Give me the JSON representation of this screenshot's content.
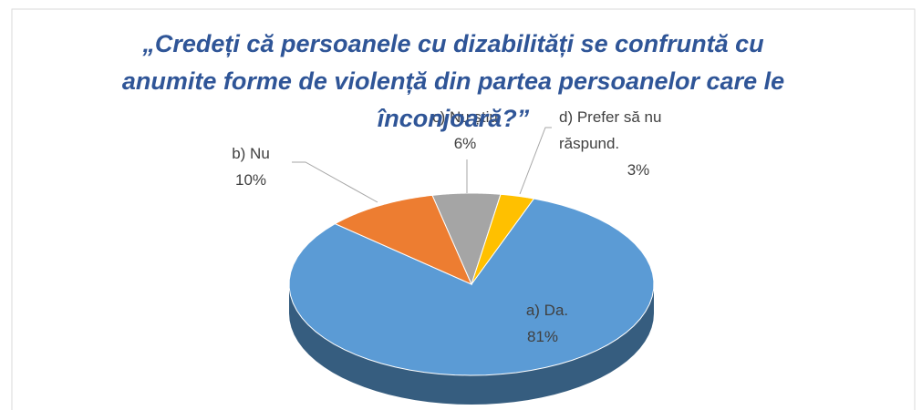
{
  "chart_data": {
    "type": "pie",
    "title": "„Credeți că persoanele cu dizabilități se confruntă cu anumite forme de violență din partea persoanelor care le înconjoară?”",
    "categories": [
      "a) Da.",
      "b) Nu",
      "c) Nu știu",
      "d) Prefer să nu răspund."
    ],
    "values": [
      81,
      10,
      6,
      3
    ],
    "value_labels": [
      "81%",
      "10%",
      "6%",
      "3%"
    ],
    "colors": [
      "#5b9bd5",
      "#ed7d31",
      "#a5a5a5",
      "#ffc000"
    ]
  }
}
